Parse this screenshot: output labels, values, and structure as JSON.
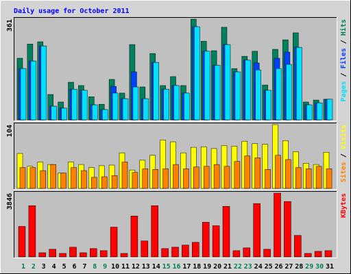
{
  "chart_data": [
    {
      "type": "bar",
      "title": "Daily usage for October 2011",
      "ylim": [
        0,
        361
      ],
      "yticks": [
        361
      ],
      "legend_separator": " / ",
      "series": [
        {
          "name": "Hits",
          "color": "#00805C",
          "values": [
            221,
            272,
            280,
            91,
            64,
            135,
            123,
            83,
            56,
            145,
            96,
            270,
            118,
            238,
            123,
            155,
            123,
            361,
            282,
            248,
            332,
            184,
            228,
            246,
            125,
            253,
            287,
            312,
            64,
            71,
            74
          ]
        },
        {
          "name": "Files",
          "color": "#0040FF",
          "values": [
            184,
            211,
            265,
            49,
            42,
            110,
            106,
            54,
            37,
            120,
            76,
            172,
            76,
            206,
            110,
            123,
            96,
            334,
            246,
            196,
            270,
            172,
            214,
            204,
            106,
            221,
            243,
            260,
            54,
            61,
            74
          ]
        },
        {
          "name": "Pages",
          "color": "#00E0FF",
          "values": [
            184,
            211,
            265,
            49,
            42,
            110,
            106,
            54,
            37,
            96,
            76,
            118,
            76,
            206,
            110,
            123,
            96,
            334,
            246,
            196,
            270,
            172,
            214,
            179,
            106,
            184,
            199,
            260,
            54,
            61,
            74
          ]
        }
      ]
    },
    {
      "type": "bar",
      "ylim": [
        0,
        104
      ],
      "yticks": [
        104
      ],
      "series": [
        {
          "name": "Visits",
          "color": "#FFFF00",
          "values": [
            57,
            36,
            43,
            39,
            25,
            43,
            39,
            34,
            37,
            38,
            58,
            30,
            46,
            54,
            79,
            76,
            58,
            67,
            68,
            65,
            70,
            69,
            77,
            73,
            72,
            104,
            78,
            60,
            41,
            39,
            59
          ]
        },
        {
          "name": "Sites",
          "color": "#FF8000",
          "values": [
            34,
            34,
            29,
            39,
            25,
            34,
            29,
            18,
            19,
            21,
            43,
            26,
            32,
            31,
            32,
            39,
            32,
            35,
            36,
            39,
            36,
            44,
            53,
            50,
            31,
            54,
            47,
            34,
            32,
            36,
            32
          ]
        }
      ]
    },
    {
      "type": "bar",
      "ylim": [
        0,
        3846
      ],
      "yticks": [
        3846
      ],
      "categories": [
        "1",
        "2",
        "3",
        "4",
        "5",
        "6",
        "7",
        "8",
        "9",
        "10",
        "11",
        "12",
        "13",
        "14",
        "15",
        "16",
        "17",
        "18",
        "19",
        "20",
        "21",
        "22",
        "23",
        "24",
        "25",
        "26",
        "27",
        "28",
        "29",
        "30",
        "31"
      ],
      "category_colors": [
        "#00805C",
        "#00805C",
        "#000000",
        "#000000",
        "#000000",
        "#000000",
        "#000000",
        "#00805C",
        "#00805C",
        "#000000",
        "#000000",
        "#000000",
        "#000000",
        "#000000",
        "#00805C",
        "#00805C",
        "#000000",
        "#000000",
        "#000000",
        "#000000",
        "#000000",
        "#00805C",
        "#00805C",
        "#000000",
        "#000000",
        "#000000",
        "#000000",
        "#000000",
        "#00805C",
        "#00805C",
        "#000000"
      ],
      "series": [
        {
          "name": "KBytes",
          "color": "#FF0000",
          "values": [
            1839,
            3093,
            251,
            460,
            209,
            585,
            251,
            502,
            376,
            1797,
            209,
            2466,
            961,
            3093,
            502,
            585,
            711,
            878,
            2090,
            1881,
            3051,
            376,
            543,
            3219,
            460,
            3846,
            3344,
            1296,
            209,
            334,
            376
          ]
        }
      ]
    }
  ]
}
